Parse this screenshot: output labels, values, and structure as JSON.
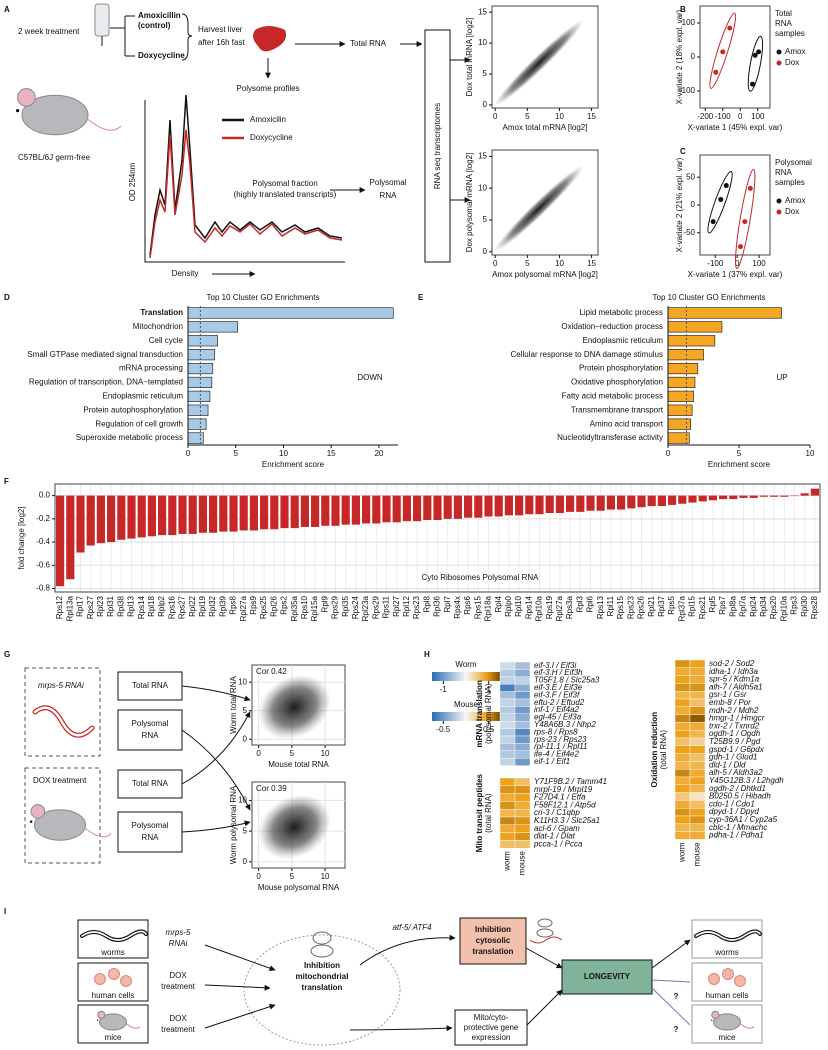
{
  "panel_labels": [
    "A",
    "B",
    "C",
    "D",
    "E",
    "F",
    "G",
    "H",
    "I"
  ],
  "panel_a": {
    "treatment": "2 week treatment",
    "control": [
      "Amoxicillin",
      "(control)"
    ],
    "dox": "Doxycycline",
    "harvest": [
      "Harvest liver",
      "after 16h fast"
    ],
    "total_rna": "Total RNA",
    "polysome_profiles": "Polysome profiles",
    "strain": "C57BL/6J germ-free",
    "legend": [
      "Amoxicilin",
      "Doxycycline"
    ],
    "legend_colors": [
      "#111111",
      "#c62828"
    ],
    "y_label": "OD 254nm",
    "x_label": "Density",
    "fraction": [
      "Polysomal fraction",
      "(highly translated transcripts)"
    ],
    "polysomal_rna": [
      "Polysomal",
      "RNA"
    ],
    "rnaseq": "RNA seq transcriptomes"
  },
  "panel_g": {
    "worm_treatment": "mrps-5 RNAi",
    "mouse_treatment": "DOX treatment",
    "worm_boxes": [
      [
        "Total RNA"
      ],
      [
        "Polysomal",
        "RNA"
      ]
    ],
    "mouse_boxes": [
      [
        "Total  RNA"
      ],
      [
        "Polysomal",
        "RNA"
      ]
    ]
  },
  "panel_i": {
    "left_boxes": [
      "worms",
      "human cells",
      "mice"
    ],
    "treatments": [
      [
        "mrps-5",
        "RNAi"
      ],
      [
        "DOX",
        "treatment"
      ],
      [
        "DOX",
        "treatment"
      ]
    ],
    "mito": [
      "Inhibition",
      "mitochondrial",
      "translation"
    ],
    "atf": "atf-5/ ATF4",
    "cyto": [
      "Inhibition",
      "cytosolic",
      "translation"
    ],
    "protective": [
      "Mito/cyto-",
      "protective gene",
      "expression"
    ],
    "longevity": "LONGEVITY",
    "right_boxes": [
      "worms",
      "human cells",
      "mice"
    ],
    "question": [
      "?",
      "?"
    ]
  },
  "chart_data": [
    {
      "type": "scatter",
      "x_label": "Amox total mRNA [log2]",
      "y_label": "Dox total mRNA [log2]",
      "xlim": [
        -0.5,
        16
      ],
      "ylim": [
        -0.5,
        16
      ],
      "xticks": [
        0,
        5,
        10,
        15
      ],
      "yticks": [
        0,
        5,
        10,
        15
      ]
    },
    {
      "type": "scatter",
      "x_label": "Amox polysomal mRNA [log2]",
      "y_label": "Dox polysomal mRNA [log2]",
      "xlim": [
        -0.5,
        16
      ],
      "ylim": [
        -0.5,
        16
      ],
      "xticks": [
        0,
        5,
        10,
        15
      ],
      "yticks": [
        0,
        5,
        10,
        15
      ]
    },
    {
      "type": "pca",
      "x_label": "X-variate 1 (45% expl. var)",
      "y_label": "X-variate 2 (18% expl. var)",
      "legend_title": [
        "Total",
        "RNA",
        "samples"
      ],
      "xlim": [
        -230,
        170
      ],
      "ylim": [
        -150,
        150
      ],
      "xticks": [
        -200,
        -100,
        0,
        100
      ],
      "yticks": [
        -100,
        0,
        100
      ],
      "series": [
        {
          "name": "Amox",
          "color": "#111111",
          "x": [
            70,
            85,
            105
          ],
          "values": [
            -80,
            5,
            15
          ]
        },
        {
          "name": "Dox",
          "color": "#c62828",
          "x": [
            -140,
            -100,
            -60
          ],
          "values": [
            -45,
            15,
            85
          ]
        }
      ]
    },
    {
      "type": "pca",
      "x_label": "X-variate 1 (37% expl. var)",
      "y_label": "X-variate 2 (21% expl. var)",
      "legend_title": [
        "Polysomal",
        "RNA",
        "samples"
      ],
      "xlim": [
        -170,
        150
      ],
      "ylim": [
        -90,
        90
      ],
      "xticks": [
        -100,
        0,
        100
      ],
      "yticks": [
        -50,
        0,
        50
      ],
      "series": [
        {
          "name": "Amox",
          "color": "#111111",
          "x": [
            -110,
            -75,
            -50
          ],
          "values": [
            -30,
            10,
            35
          ]
        },
        {
          "name": "Dox",
          "color": "#c62828",
          "x": [
            15,
            35,
            60
          ],
          "values": [
            -75,
            -30,
            30
          ]
        }
      ]
    },
    {
      "type": "hbar",
      "title": "Top 10 Cluster GO Enrichments",
      "annotation": "DOWN",
      "x_label": "Enrichment score",
      "color": "#a8c9e8",
      "highlight": 0,
      "highlight_color": "#c0392b",
      "threshold": 1.3,
      "xlim": [
        0,
        22
      ],
      "xticks": [
        0,
        5,
        10,
        15,
        20
      ],
      "categories": [
        "Translation",
        "Mitochondrion",
        "Cell cycle",
        "Small GTPase mediated signal transduction",
        "mRNA processing",
        "Regulation of transcription, DNA−templated",
        "Endoplasmic reticulum",
        "Protein autophosphorylation",
        "Regulation of cell growth",
        "Superoxide metabolic process"
      ],
      "values": [
        21.5,
        5.2,
        3.1,
        2.8,
        2.6,
        2.5,
        2.3,
        2.1,
        1.9,
        1.6
      ]
    },
    {
      "type": "hbar",
      "title": "Top 10 Cluster GO Enrichments",
      "annotation": "UP",
      "x_label": "Enrichment score",
      "color": "#f5a623",
      "threshold": 1.3,
      "xlim": [
        0,
        10
      ],
      "xticks": [
        0,
        5,
        10
      ],
      "categories": [
        "Lipid metabolic process",
        "Oxidation−reduction process",
        "Endoplasmic reticulum",
        "Cellular response to DNA damage stimulus",
        "Protein phosphorylation",
        "Oxidative phosphorylation",
        "Fatty acid metabolic process",
        "Transmembrane transport",
        "Amino acid transport",
        "Nucleotidyltransferase activity"
      ],
      "values": [
        8.0,
        3.8,
        3.3,
        2.5,
        2.1,
        1.9,
        1.8,
        1.7,
        1.6,
        1.5
      ]
    },
    {
      "type": "bar",
      "y_label": "fold change [log2]",
      "annotation": "Cyto Ribosomes Polysomal RNA",
      "color": "#c62828",
      "grid": true,
      "ylim": [
        -0.83,
        0.1
      ],
      "yticks": [
        {
          "value": 0,
          "label": "0.0"
        },
        -0.2,
        -0.4,
        -0.6,
        -0.8
      ],
      "categories": [
        "Rps12",
        "Rpl13a",
        "Rpl17",
        "Rps27",
        "Rpl23",
        "Rpl31",
        "Rpl38",
        "Rpl13",
        "Rps14",
        "Rpl18",
        "Rplp2",
        "Rps16",
        "Rps27",
        "Rpl22",
        "Rpl19",
        "Rpl32",
        "Rpl39",
        "Rps8",
        "Rpl27a",
        "Rps9",
        "Rps25",
        "Rpl26",
        "Rps2",
        "Rpl35a",
        "Rps10",
        "Rpl15a",
        "Rpl9",
        "Rps29",
        "Rpl35",
        "Rps24",
        "Rpl23a",
        "Rps29",
        "Rps11",
        "Rpl27",
        "Rpl12",
        "Rps23",
        "Rpl8",
        "Rpl36",
        "Rpl7",
        "Rps4x",
        "Rps6",
        "Rps15",
        "Rpl18a",
        "Rpl4",
        "Rplp0",
        "Rpl10",
        "Rps14",
        "Rpl10a",
        "Rps19",
        "Rpl27a",
        "Rps3a",
        "Rpl3",
        "Rpl6",
        "Rps13",
        "Rpl11",
        "Rps15",
        "Rps23",
        "Rps26",
        "Rpl21",
        "Rpl37",
        "Rps5",
        "Rpl37a",
        "Rpl15",
        "Rps21",
        "Rpl5",
        "Rps7",
        "Rpl8a",
        "Rpl7a",
        "Rpl24",
        "Rpl34",
        "Rps20",
        "Rpl10a",
        "Rps3",
        "Rpl30",
        "Rps28"
      ],
      "values": [
        -0.78,
        -0.72,
        -0.49,
        -0.43,
        -0.41,
        -0.4,
        -0.38,
        -0.37,
        -0.36,
        -0.35,
        -0.34,
        -0.34,
        -0.33,
        -0.33,
        -0.32,
        -0.32,
        -0.31,
        -0.31,
        -0.3,
        -0.3,
        -0.29,
        -0.29,
        -0.28,
        -0.28,
        -0.27,
        -0.27,
        -0.26,
        -0.26,
        -0.25,
        -0.25,
        -0.24,
        -0.24,
        -0.23,
        -0.23,
        -0.22,
        -0.22,
        -0.21,
        -0.21,
        -0.2,
        -0.2,
        -0.19,
        -0.19,
        -0.18,
        -0.18,
        -0.17,
        -0.17,
        -0.16,
        -0.16,
        -0.15,
        -0.15,
        -0.14,
        -0.14,
        -0.13,
        -0.13,
        -0.12,
        -0.12,
        -0.11,
        -0.1,
        -0.09,
        -0.09,
        -0.08,
        -0.07,
        -0.06,
        -0.05,
        -0.04,
        -0.03,
        -0.03,
        -0.02,
        -0.02,
        -0.01,
        -0.01,
        -0.01,
        0.0,
        0.02,
        0.06
      ]
    },
    {
      "type": "scatter",
      "annotation": "Cor 0.42",
      "x_label": "Mouse total RNA",
      "y_label": "Worm total RNA",
      "xlim": [
        -1,
        13
      ],
      "ylim": [
        -1,
        13
      ],
      "xticks": [
        0,
        5,
        10
      ],
      "yticks": [
        0,
        5,
        10
      ]
    },
    {
      "type": "scatter",
      "annotation": "Cor 0.39",
      "x_label": "Mouse polysomal RNA",
      "y_label": "Worm polysomal RNA",
      "xlim": [
        -1,
        13
      ],
      "ylim": [
        -1,
        13
      ],
      "xticks": [
        0,
        5,
        10
      ],
      "yticks": [
        0,
        5,
        10
      ]
    },
    {
      "type": "heatmap",
      "columns": [
        "worm",
        "mouse"
      ],
      "colors": [
        "#2b6cb0",
        "#f7f7f7",
        "#eea21c",
        "#7a4a00"
      ],
      "legends": [
        {
          "name": "Worm",
          "lim": [
            -1.5,
            1.5
          ],
          "ticks": [
            -1,
            1
          ]
        },
        {
          "name": "Mouse",
          "lim": [
            -0.75,
            0.75
          ],
          "ticks": [
            -0.5,
            0.5
          ]
        }
      ],
      "blocks": [
        {
          "title": "mRNA translation",
          "subtitle": "(polysomal RNA)",
          "rows": [
            "eif-3.I / Eif3i",
            "eif-3.H / Eif3h",
            "T05F1.8 / Slc25a3",
            "eif-3.E / Eif3e",
            "eif-3.F / Eif3f",
            "eftu-2 / Eftud2",
            "inf-1 / Eif4a2",
            "egl-45 / Eif3a",
            "Y48A6B.3 / Nhp2",
            "rps-8 / Rps8",
            "rps-23 / Rps23",
            "rpl-11.1 / Rpl11",
            "ife-4 / Eif4e2",
            "eif-1 / Eif1"
          ],
          "worm": [
            -0.3,
            -0.5,
            -0.4,
            -1.3,
            -0.6,
            -0.4,
            -0.5,
            -0.4,
            -0.3,
            -0.5,
            -0.4,
            -0.6,
            -0.5,
            -0.4
          ],
          "mouse": [
            -0.3,
            -0.4,
            -0.2,
            -0.4,
            -0.5,
            -0.3,
            -0.5,
            -0.4,
            -0.3,
            -0.6,
            -0.5,
            -0.4,
            -0.3,
            -0.5
          ]
        },
        {
          "title": "Mito transit peptides",
          "subtitle": "(total RNA)",
          "rows": [
            "Y71F9B.2 / Tamm41",
            "mrpl-19 / Mrpl19",
            "F27D4.1 / Etfa",
            "F58F12.1 / Atp5d",
            "cri-3 / C1qbp",
            "K11H3.3 / Slc25a1",
            "acl-6 / Gpam",
            "dlat-1 / Dlat",
            "pcca-1 / Pcca"
          ],
          "worm": [
            0.9,
            1.0,
            0.8,
            1.0,
            0.7,
            1.1,
            0.8,
            0.9,
            0.6
          ],
          "mouse": [
            0.3,
            0.5,
            0.45,
            0.4,
            0.35,
            0.5,
            0.45,
            0.5,
            0.3
          ]
        },
        {
          "title": "Oxidation reduction",
          "subtitle": "(total RNA)",
          "rows": [
            "sod-2 / Sod2",
            "idha-1 / Idh3a",
            "spr-5 / Kdm1a",
            "alh-7 / Aldh5a1",
            "gsr-1 / Gsr",
            "emb-8 / Por",
            "mdh-2 / Mdh2",
            "hmgr-1 / Hmgcr",
            "trxr-2 / Txnrd2",
            "ogdh-1 / Ogdh",
            "T25B9.9 / Pgd",
            "gspd-1 / G6pdx",
            "gdh-1 / Glud1",
            "dld-1 / Dld",
            "alh-5 / Aldh3a2",
            "Y45G12B.3 / L2hgdh",
            "ogdh-2 / Dhtkd1",
            "B0250.5 / Hibadh",
            "cdo-1 / Cdo1",
            "dpyd-1 / Dpyd",
            "cyp-36A1 / Cyp2a5",
            "cblc-1 / Mmachc",
            "pdha-1 / Pdha1"
          ],
          "worm": [
            1.0,
            0.8,
            0.9,
            1.0,
            0.7,
            0.9,
            0.8,
            1.1,
            0.8,
            0.9,
            0.6,
            0.9,
            0.8,
            0.7,
            1.1,
            0.8,
            0.9,
            0.5,
            0.8,
            1.0,
            0.9,
            0.7,
            0.8
          ],
          "mouse": [
            0.45,
            0.4,
            0.4,
            0.5,
            0.35,
            0.3,
            0.5,
            0.7,
            0.4,
            0.35,
            0.2,
            0.45,
            0.3,
            0.35,
            0.4,
            0.45,
            0.35,
            0.1,
            0.3,
            0.45,
            0.5,
            0.35,
            0.4
          ]
        }
      ]
    }
  ]
}
